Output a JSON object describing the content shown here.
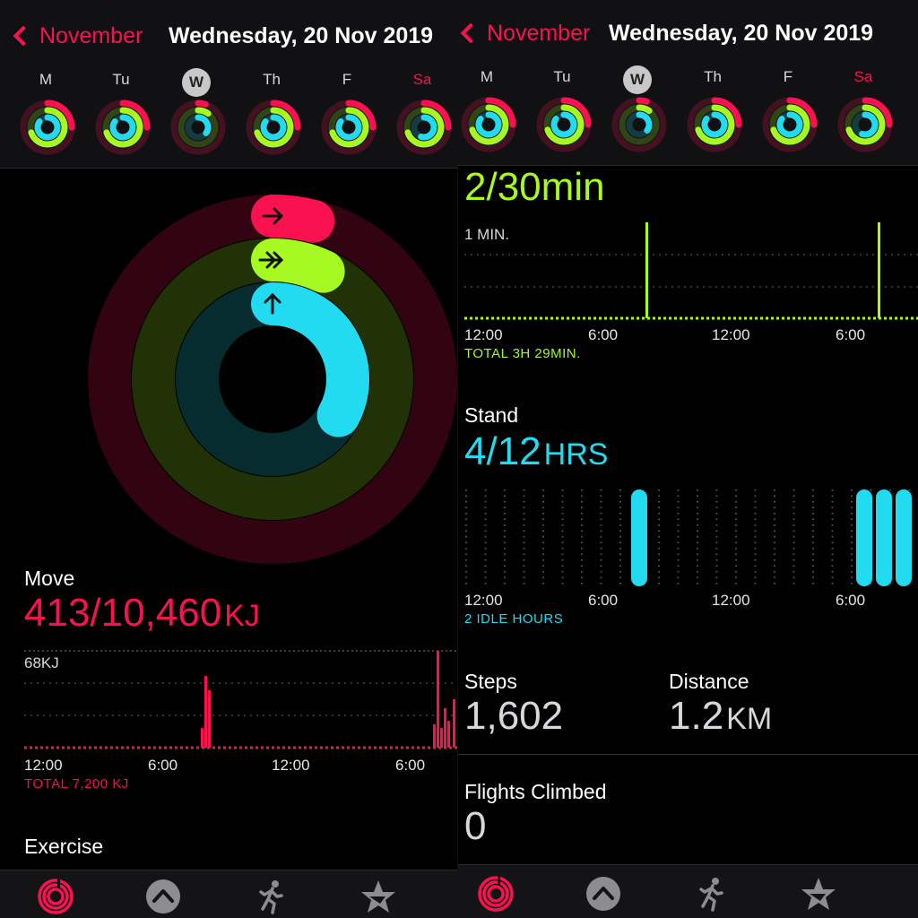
{
  "left": {
    "nav": {
      "back_label": "November",
      "title": "Wednesday, 20 Nov 2019"
    },
    "week": [
      {
        "label": "M",
        "move": 0.25,
        "exercise": 0.7,
        "stand": 0.85,
        "today": false,
        "weekend": false
      },
      {
        "label": "Tu",
        "move": 0.25,
        "exercise": 0.7,
        "stand": 0.85,
        "today": false,
        "weekend": false
      },
      {
        "label": "W",
        "move": 0.05,
        "exercise": 0.1,
        "stand": 0.35,
        "today": true,
        "weekend": false
      },
      {
        "label": "Th",
        "move": 0.25,
        "exercise": 0.7,
        "stand": 0.85,
        "today": false,
        "weekend": false
      },
      {
        "label": "F",
        "move": 0.25,
        "exercise": 0.7,
        "stand": 0.85,
        "today": false,
        "weekend": false
      },
      {
        "label": "Sa",
        "move": 0.25,
        "exercise": 0.7,
        "stand": 0.55,
        "today": false,
        "weekend": true
      }
    ],
    "rings": {
      "move_progress": 0.04,
      "exercise_progress": 0.07,
      "stand_progress": 0.33
    },
    "move": {
      "title": "Move",
      "value": "413/10,460",
      "unit": "KJ",
      "chart_label": "68KJ",
      "ticks": [
        "12:00",
        "6:00",
        "12:00",
        "6:00"
      ],
      "total": "TOTAL 7,200 KJ"
    },
    "exercise": {
      "title": "Exercise"
    }
  },
  "right": {
    "nav": {
      "back_label": "November",
      "title": "Wednesday, 20 Nov 2019"
    },
    "exercise": {
      "value": "2/30min",
      "chart_label": "1 MIN.",
      "ticks": [
        "12:00",
        "6:00",
        "12:00",
        "6:00"
      ],
      "total": "TOTAL 3H 29MIN."
    },
    "stand": {
      "title": "Stand",
      "value": "4/12",
      "unit": "HRS",
      "ticks": [
        "12:00",
        "6:00",
        "12:00",
        "6:00"
      ],
      "idle": "2 IDLE HOURS"
    },
    "steps": {
      "title": "Steps",
      "value": "1,602"
    },
    "distance": {
      "title": "Distance",
      "value": "1.2",
      "unit": "KM"
    },
    "flights": {
      "title": "Flights Climbed",
      "value": "0"
    }
  },
  "tabs": [
    {
      "icon": "activity-rings-icon",
      "active": true
    },
    {
      "icon": "chevron-up-circle-icon",
      "active": false
    },
    {
      "icon": "running-figure-icon",
      "active": false
    },
    {
      "icon": "award-star-icon",
      "active": false
    }
  ],
  "colors": {
    "move": "#fa1150",
    "exercise": "#a6fa22",
    "stand": "#22dbf0",
    "accent": "#fa1150"
  }
}
